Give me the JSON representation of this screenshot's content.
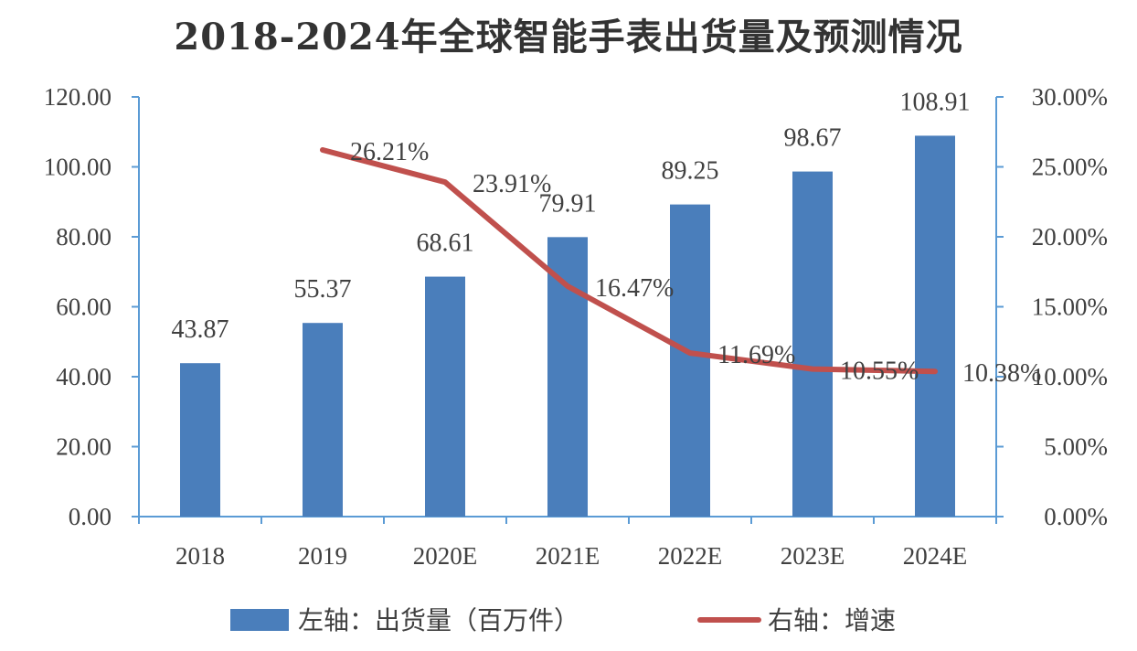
{
  "chart_data": {
    "type": "bar",
    "title": "2018-2024年全球智能手表出货量及预测情况",
    "categories": [
      "2018",
      "2019",
      "2020E",
      "2021E",
      "2022E",
      "2023E",
      "2024E"
    ],
    "series": [
      {
        "name": "左轴：出货量（百万件）",
        "type": "bar",
        "axis": "left",
        "values": [
          43.87,
          55.37,
          68.61,
          79.91,
          89.25,
          98.67,
          108.91
        ],
        "labels": [
          "43.87",
          "55.37",
          "68.61",
          "79.91",
          "89.25",
          "98.67",
          "108.91"
        ],
        "color": "#4a7ebb"
      },
      {
        "name": "右轴：增速",
        "type": "line",
        "axis": "right",
        "values": [
          null,
          26.21,
          23.91,
          16.47,
          11.69,
          10.55,
          10.38
        ],
        "labels": [
          "",
          "26.21%",
          "23.91%",
          "16.47%",
          "11.69%",
          "10.55%",
          "10.38%"
        ],
        "color": "#c0504d"
      }
    ],
    "left_axis": {
      "ylim": [
        0,
        120
      ],
      "ticks": [
        "0.00",
        "20.00",
        "40.00",
        "60.00",
        "80.00",
        "100.00",
        "120.00"
      ],
      "tick_values": [
        0,
        20,
        40,
        60,
        80,
        100,
        120
      ]
    },
    "right_axis": {
      "ylim": [
        0,
        30
      ],
      "ticks": [
        "0.00%",
        "5.00%",
        "10.00%",
        "15.00%",
        "20.00%",
        "25.00%",
        "30.00%"
      ],
      "tick_values": [
        0,
        5,
        10,
        15,
        20,
        25,
        30
      ]
    },
    "grid": false,
    "legend": "bottom",
    "axis_color": "#5b9bd5",
    "xlabel": "",
    "ylabel": ""
  }
}
